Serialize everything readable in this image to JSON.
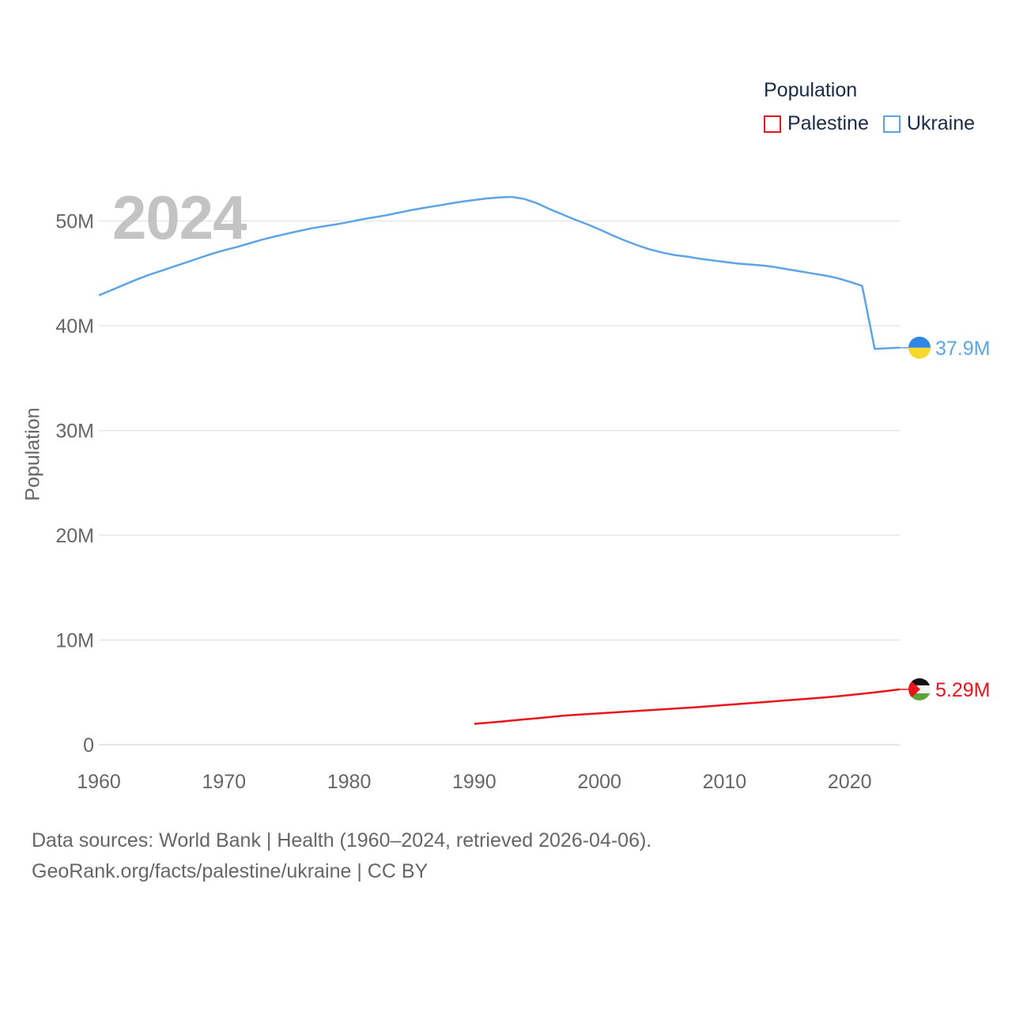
{
  "legend": {
    "title": "Population",
    "entries": [
      {
        "name": "Palestine",
        "color": "#e8141b"
      },
      {
        "name": "Ukraine",
        "color": "#5da4e6"
      }
    ]
  },
  "year_label": "2024",
  "footer": {
    "line1": "Data sources: World Bank | Health (1960–2024, retrieved 2026-04-06).",
    "line2": "GeoRank.org/facts/palestine/ukraine | CC BY"
  },
  "chart_data": {
    "type": "line",
    "title": "",
    "xlabel": "",
    "ylabel": "Population",
    "xlim": [
      1960,
      2024
    ],
    "ylim": [
      0,
      55000000
    ],
    "x_ticks": [
      1960,
      1970,
      1980,
      1990,
      2000,
      2010,
      2020
    ],
    "y_ticks": [
      {
        "value": 0,
        "label": "0"
      },
      {
        "value": 10000000,
        "label": "10M"
      },
      {
        "value": 20000000,
        "label": "20M"
      },
      {
        "value": 30000000,
        "label": "30M"
      },
      {
        "value": 40000000,
        "label": "40M"
      },
      {
        "value": 50000000,
        "label": "50M"
      }
    ],
    "grid": true,
    "series": [
      {
        "name": "Ukraine",
        "color": "#5da4e6",
        "end_label": "37.9M",
        "x": [
          1960,
          1961,
          1962,
          1963,
          1964,
          1965,
          1966,
          1967,
          1968,
          1969,
          1970,
          1971,
          1972,
          1973,
          1974,
          1975,
          1976,
          1977,
          1978,
          1979,
          1980,
          1981,
          1982,
          1983,
          1984,
          1985,
          1986,
          1987,
          1988,
          1989,
          1990,
          1991,
          1992,
          1993,
          1994,
          1995,
          1996,
          1997,
          1998,
          1999,
          2000,
          2001,
          2002,
          2003,
          2004,
          2005,
          2006,
          2007,
          2008,
          2009,
          2010,
          2011,
          2012,
          2013,
          2014,
          2015,
          2016,
          2017,
          2018,
          2019,
          2020,
          2021,
          2022,
          2023,
          2024
        ],
        "y": [
          42900000,
          43400000,
          43900000,
          44400000,
          44850000,
          45250000,
          45650000,
          46050000,
          46450000,
          46850000,
          47200000,
          47500000,
          47850000,
          48200000,
          48500000,
          48780000,
          49050000,
          49300000,
          49500000,
          49680000,
          49900000,
          50150000,
          50350000,
          50550000,
          50800000,
          51050000,
          51250000,
          51450000,
          51650000,
          51850000,
          52000000,
          52150000,
          52250000,
          52300000,
          52100000,
          51700000,
          51150000,
          50650000,
          50150000,
          49700000,
          49200000,
          48650000,
          48150000,
          47700000,
          47300000,
          47000000,
          46750000,
          46600000,
          46400000,
          46250000,
          46100000,
          45950000,
          45850000,
          45750000,
          45600000,
          45400000,
          45200000,
          45000000,
          44800000,
          44550000,
          44200000,
          43800000,
          37800000,
          37850000,
          37900000
        ]
      },
      {
        "name": "Palestine",
        "color": "#e8141b",
        "end_label": "5.29M",
        "x": [
          1990,
          1991,
          1992,
          1993,
          1994,
          1995,
          1996,
          1997,
          1998,
          1999,
          2000,
          2001,
          2002,
          2003,
          2004,
          2005,
          2006,
          2007,
          2008,
          2009,
          2010,
          2011,
          2012,
          2013,
          2014,
          2015,
          2016,
          2017,
          2018,
          2019,
          2020,
          2021,
          2022,
          2023,
          2024
        ],
        "y": [
          2000000,
          2100000,
          2200000,
          2310000,
          2420000,
          2530000,
          2640000,
          2760000,
          2850000,
          2930000,
          3000000,
          3080000,
          3150000,
          3220000,
          3300000,
          3370000,
          3450000,
          3530000,
          3610000,
          3700000,
          3790000,
          3880000,
          3970000,
          4060000,
          4150000,
          4240000,
          4330000,
          4420000,
          4520000,
          4630000,
          4750000,
          4870000,
          5000000,
          5140000,
          5290000
        ]
      }
    ]
  }
}
